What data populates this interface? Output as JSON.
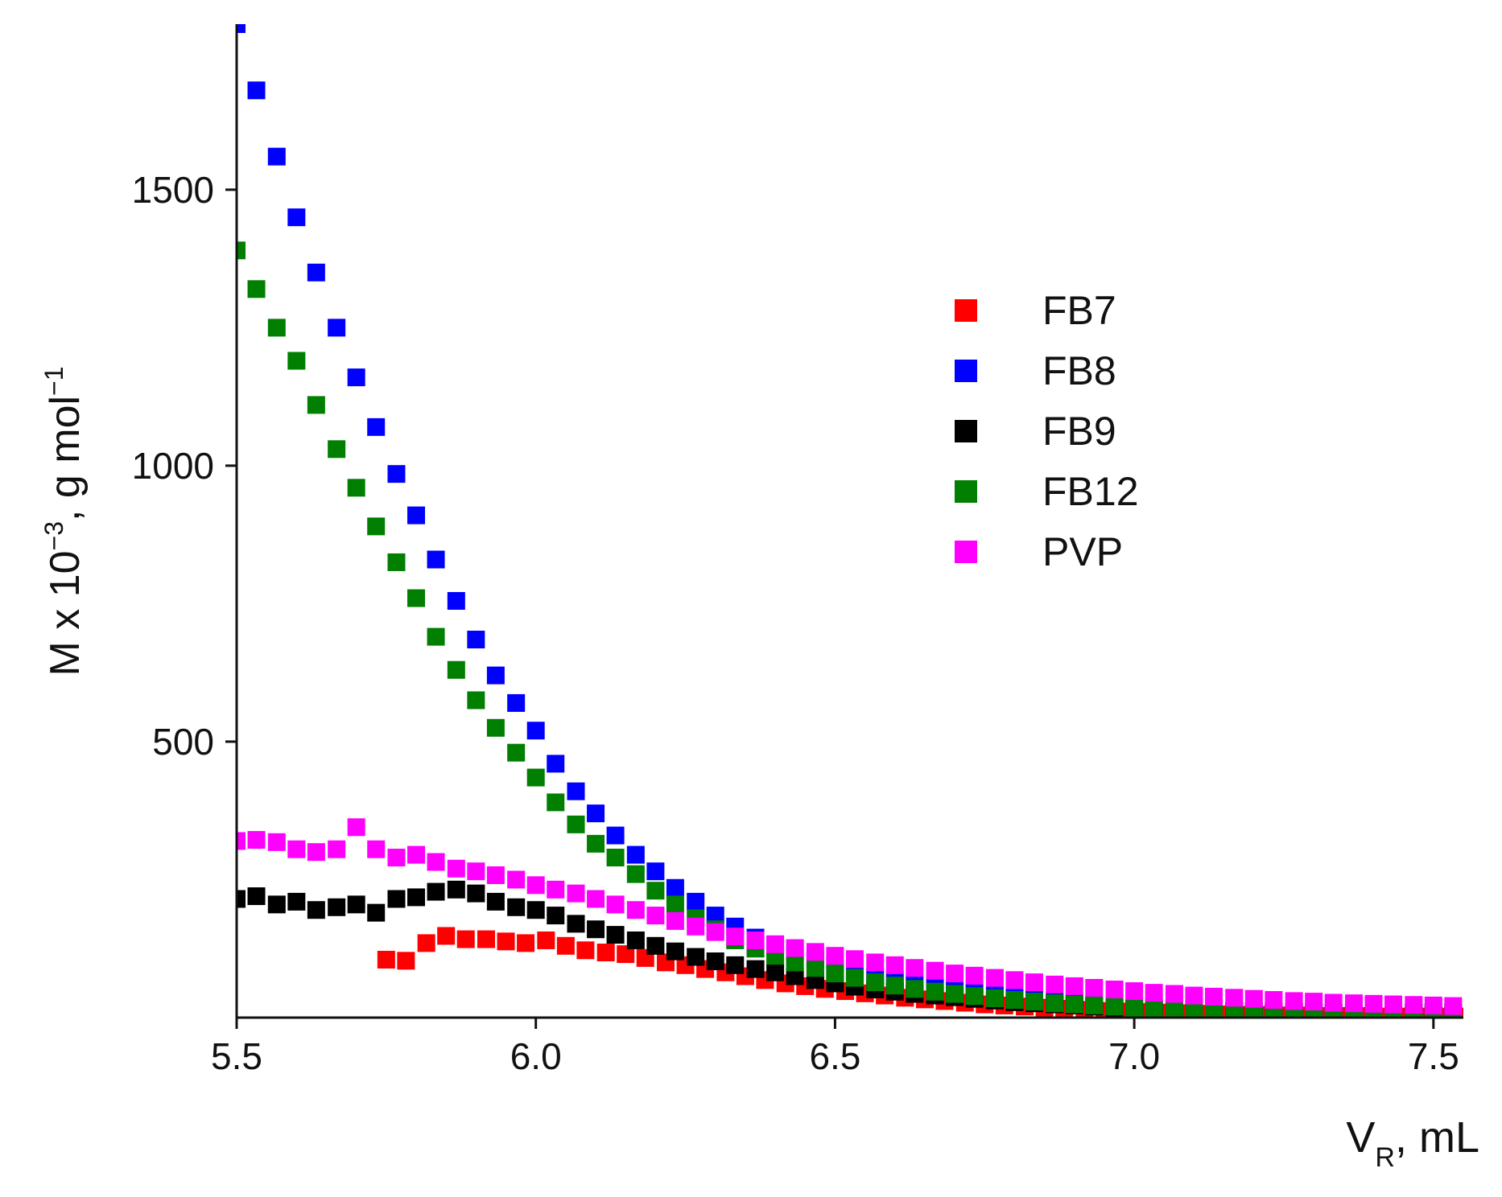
{
  "chart_data": {
    "type": "scatter",
    "title": "",
    "xlabel": "V",
    "xlabel_sub": "R",
    "xlabel_suffix": ", mL",
    "ylabel": "M x 10",
    "ylabel_exp": "−3",
    "ylabel_mid": ", g mol",
    "ylabel_exp2": "−1",
    "xlim": [
      5.5,
      7.55
    ],
    "ylim": [
      0,
      1800
    ],
    "xticks": [
      5.5,
      6.0,
      6.5,
      7.0,
      7.5
    ],
    "xtick_labels": [
      "5.5",
      "6.0",
      "6.5",
      "7.0",
      "7.5"
    ],
    "yticks": [
      500,
      1000,
      1500
    ],
    "ytick_labels": [
      "500",
      "1000",
      "1500"
    ],
    "legend_position": "right",
    "series": [
      {
        "name": "FB7",
        "color": "#ff0000",
        "x": [
          5.75,
          5.783,
          5.817,
          5.85,
          5.883,
          5.917,
          5.95,
          5.983,
          6.017,
          6.05,
          6.083,
          6.117,
          6.15,
          6.183,
          6.217,
          6.25,
          6.283,
          6.317,
          6.35,
          6.383,
          6.417,
          6.45,
          6.483,
          6.517,
          6.55,
          6.583,
          6.617,
          6.65,
          6.683,
          6.717,
          6.75,
          6.783,
          6.817,
          6.85,
          6.883,
          6.917,
          6.95,
          6.983,
          7.017,
          7.05,
          7.083,
          7.117,
          7.15,
          7.183,
          7.217,
          7.25,
          7.283,
          7.317,
          7.35,
          7.383,
          7.417,
          7.45,
          7.483,
          7.517,
          7.55
        ],
        "y": [
          105,
          103,
          135,
          148,
          142,
          142,
          138,
          135,
          140,
          130,
          122,
          118,
          115,
          108,
          100,
          95,
          88,
          82,
          75,
          68,
          62,
          57,
          52,
          48,
          44,
          40,
          36,
          33,
          30,
          27,
          24,
          22,
          20,
          18,
          16,
          14,
          12,
          11,
          10,
          9,
          8,
          7,
          6,
          5,
          5,
          4,
          4,
          3,
          3,
          3,
          2,
          2,
          2,
          2,
          2
        ]
      },
      {
        "name": "FB8",
        "color": "#0000ff",
        "x": [
          5.5,
          5.533,
          5.567,
          5.6,
          5.633,
          5.667,
          5.7,
          5.733,
          5.767,
          5.8,
          5.833,
          5.867,
          5.9,
          5.933,
          5.967,
          6.0,
          6.033,
          6.067,
          6.1,
          6.133,
          6.167,
          6.2,
          6.233,
          6.267,
          6.3,
          6.333,
          6.367,
          6.4,
          6.433,
          6.467,
          6.5,
          6.533,
          6.567,
          6.6,
          6.633,
          6.667,
          6.7,
          6.733,
          6.767,
          6.8,
          6.833,
          6.867,
          6.9,
          6.933,
          6.967,
          7.0,
          7.033,
          7.067,
          7.1,
          7.133,
          7.167,
          7.2,
          7.233,
          7.267,
          7.3,
          7.333,
          7.367,
          7.4,
          7.433,
          7.467,
          7.5,
          7.533
        ],
        "y": [
          1800,
          1680,
          1560,
          1450,
          1350,
          1250,
          1160,
          1070,
          985,
          910,
          830,
          755,
          685,
          620,
          570,
          520,
          460,
          410,
          370,
          330,
          295,
          265,
          235,
          210,
          185,
          165,
          145,
          130,
          118,
          105,
          95,
          85,
          75,
          68,
          62,
          56,
          50,
          45,
          40,
          36,
          33,
          30,
          27,
          24,
          22,
          20,
          18,
          16,
          15,
          14,
          13,
          12,
          11,
          10,
          10,
          10,
          10,
          10,
          10,
          10,
          10,
          10
        ]
      },
      {
        "name": "FB9",
        "color": "#000000",
        "x": [
          5.5,
          5.533,
          5.567,
          5.6,
          5.633,
          5.667,
          5.7,
          5.733,
          5.767,
          5.8,
          5.833,
          5.867,
          5.9,
          5.933,
          5.967,
          6.0,
          6.033,
          6.067,
          6.1,
          6.133,
          6.167,
          6.2,
          6.233,
          6.267,
          6.3,
          6.333,
          6.367,
          6.4,
          6.433,
          6.467,
          6.5,
          6.533,
          6.567,
          6.6,
          6.633,
          6.667,
          6.7,
          6.733,
          6.767,
          6.8,
          6.833,
          6.867,
          6.9,
          6.933,
          6.967,
          7.0,
          7.033,
          7.067,
          7.1,
          7.133,
          7.167,
          7.2,
          7.233,
          7.267,
          7.3,
          7.333,
          7.367,
          7.4,
          7.433,
          7.467,
          7.5,
          7.533
        ],
        "y": [
          215,
          220,
          205,
          210,
          195,
          200,
          205,
          190,
          215,
          218,
          228,
          232,
          225,
          210,
          200,
          195,
          185,
          170,
          160,
          150,
          140,
          130,
          120,
          110,
          102,
          95,
          88,
          82,
          75,
          68,
          62,
          56,
          51,
          47,
          43,
          40,
          37,
          34,
          31,
          28,
          26,
          24,
          22,
          20,
          18,
          16,
          15,
          14,
          13,
          12,
          11,
          10,
          9,
          9,
          8,
          8,
          8,
          8,
          8,
          8,
          8,
          8
        ]
      },
      {
        "name": "FB12",
        "color": "#007f00",
        "x": [
          5.5,
          5.533,
          5.567,
          5.6,
          5.633,
          5.667,
          5.7,
          5.733,
          5.767,
          5.8,
          5.833,
          5.867,
          5.9,
          5.933,
          5.967,
          6.0,
          6.033,
          6.067,
          6.1,
          6.133,
          6.167,
          6.2,
          6.233,
          6.267,
          6.3,
          6.333,
          6.367,
          6.4,
          6.433,
          6.467,
          6.5,
          6.533,
          6.567,
          6.6,
          6.633,
          6.667,
          6.7,
          6.733,
          6.767,
          6.8,
          6.833,
          6.867,
          6.9,
          6.933,
          6.967,
          7.0,
          7.033,
          7.067,
          7.1,
          7.133,
          7.167,
          7.2,
          7.233,
          7.267,
          7.3,
          7.333,
          7.367,
          7.4,
          7.433,
          7.467,
          7.5,
          7.533
        ],
        "y": [
          1390,
          1320,
          1250,
          1190,
          1110,
          1030,
          960,
          890,
          825,
          760,
          690,
          630,
          575,
          525,
          480,
          435,
          390,
          350,
          315,
          290,
          260,
          230,
          205,
          180,
          160,
          140,
          125,
          112,
          100,
          90,
          80,
          72,
          64,
          58,
          52,
          47,
          43,
          39,
          35,
          32,
          29,
          26,
          24,
          22,
          20,
          18,
          17,
          16,
          15,
          14,
          13,
          12,
          11,
          10,
          10,
          9,
          9,
          9,
          9,
          9,
          9,
          9
        ]
      },
      {
        "name": "PVP",
        "color": "#ff00ff",
        "x": [
          5.5,
          5.533,
          5.567,
          5.6,
          5.633,
          5.667,
          5.7,
          5.733,
          5.767,
          5.8,
          5.833,
          5.867,
          5.9,
          5.933,
          5.967,
          6.0,
          6.033,
          6.067,
          6.1,
          6.133,
          6.167,
          6.2,
          6.233,
          6.267,
          6.3,
          6.333,
          6.367,
          6.4,
          6.433,
          6.467,
          6.5,
          6.533,
          6.567,
          6.6,
          6.633,
          6.667,
          6.7,
          6.733,
          6.767,
          6.8,
          6.833,
          6.867,
          6.9,
          6.933,
          6.967,
          7.0,
          7.033,
          7.067,
          7.1,
          7.133,
          7.167,
          7.2,
          7.233,
          7.267,
          7.3,
          7.333,
          7.367,
          7.4,
          7.433,
          7.467,
          7.5,
          7.533
        ],
        "y": [
          320,
          322,
          318,
          305,
          300,
          305,
          345,
          305,
          290,
          295,
          282,
          270,
          265,
          258,
          250,
          240,
          232,
          225,
          215,
          205,
          195,
          185,
          175,
          165,
          155,
          147,
          140,
          133,
          126,
          119,
          112,
          106,
          100,
          95,
          90,
          85,
          80,
          76,
          72,
          68,
          64,
          60,
          57,
          54,
          51,
          48,
          45,
          43,
          40,
          38,
          36,
          34,
          32,
          30,
          29,
          27,
          26,
          25,
          24,
          23,
          22,
          21
        ]
      }
    ]
  }
}
